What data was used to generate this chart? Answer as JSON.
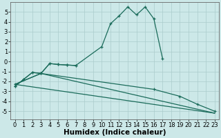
{
  "xlabel": "Humidex (Indice chaleur)",
  "background_color": "#cce8e8",
  "grid_color": "#aacccc",
  "line_color": "#1a6b5a",
  "ylim": [
    -5.8,
    6.0
  ],
  "xlim": [
    -0.5,
    23.5
  ],
  "yticks": [
    -5,
    -4,
    -3,
    -2,
    -1,
    0,
    1,
    2,
    3,
    4,
    5
  ],
  "xticks": [
    0,
    1,
    2,
    3,
    4,
    5,
    6,
    7,
    8,
    9,
    10,
    11,
    12,
    13,
    14,
    15,
    16,
    17,
    18,
    19,
    20,
    21,
    22,
    23
  ],
  "xlabel_fontsize": 7.5,
  "tick_fontsize": 6.0,
  "line1_x": [
    0,
    1,
    2,
    3,
    4,
    5,
    6,
    7,
    10,
    11,
    12,
    13,
    14,
    15,
    16,
    17
  ],
  "line1_y": [
    -2.5,
    -1.8,
    -1.1,
    -1.2,
    -0.2,
    -0.3,
    -0.35,
    -0.4,
    1.5,
    3.8,
    4.6,
    5.5,
    4.7,
    5.5,
    4.3,
    0.3
  ],
  "line2_x": [
    0,
    1,
    2,
    3,
    4,
    5,
    6,
    7
  ],
  "line2_y": [
    -2.5,
    -1.8,
    -1.1,
    -1.2,
    -0.2,
    -0.3,
    -0.35,
    -0.4
  ],
  "line3_x": [
    0,
    23
  ],
  "line3_y": [
    -2.3,
    -5.2
  ],
  "line4_x": [
    0,
    3,
    16,
    19,
    21,
    23
  ],
  "line4_y": [
    -2.3,
    -1.2,
    -2.8,
    -3.5,
    -4.3,
    -5.0
  ],
  "line5_x": [
    0,
    3,
    23
  ],
  "line5_y": [
    -2.3,
    -1.2,
    -5.2
  ]
}
